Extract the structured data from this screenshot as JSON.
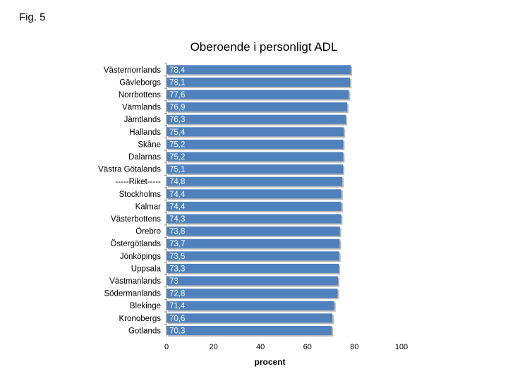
{
  "figure_label": "Fig. 5",
  "chart_data": {
    "type": "bar",
    "orientation": "horizontal",
    "title": "Oberoende i personligt ADL",
    "xlabel": "procent",
    "ylabel": "",
    "xlim": [
      0,
      100
    ],
    "xticks": [
      0,
      20,
      40,
      60,
      80,
      100
    ],
    "grid": false,
    "bar_color": "#4F81BD",
    "categories": [
      "Västernorrlands",
      "Gävleborgs",
      "Norrbottens",
      "Värmlands",
      "Jämtlands",
      "Hallands",
      "Skåne",
      "Dalarnas",
      "Västra Götalands",
      "-----Riket-----",
      "Stockholms",
      "Kalmar",
      "Västerbottens",
      "Örebro",
      "Östergötlands",
      "Jönköpings",
      "Uppsala",
      "Västmanlands",
      "Södermanlands",
      "Blekinge",
      "Kronobergs",
      "Gotlands"
    ],
    "values": [
      78.4,
      78.1,
      77.6,
      76.9,
      76.3,
      75.4,
      75.2,
      75.2,
      75.1,
      74.8,
      74.4,
      74.4,
      74.3,
      73.8,
      73.7,
      73.5,
      73.3,
      73,
      72.8,
      71.4,
      70.6,
      70.3
    ],
    "value_labels": [
      "78,4",
      "78,1",
      "77,6",
      "76,9",
      "76,3",
      "75,4",
      "75,2",
      "75,2",
      "75,1",
      "74,8",
      "74,4",
      "74,4",
      "74,3",
      "73,8",
      "73,7",
      "73,5",
      "73,3",
      "73",
      "72,8",
      "71,4",
      "70,6",
      "70,3"
    ]
  }
}
